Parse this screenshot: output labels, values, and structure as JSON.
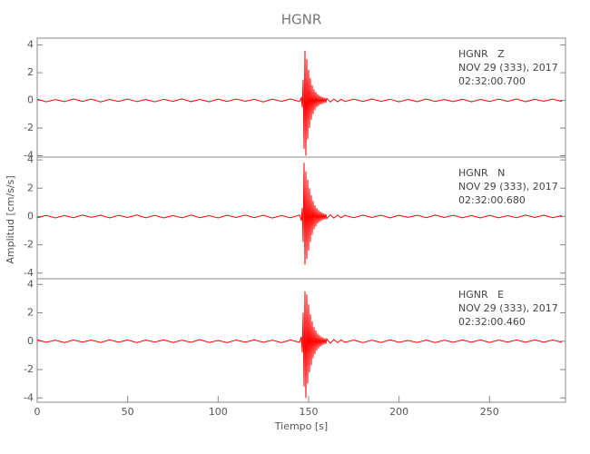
{
  "chart_data": [
    {
      "type": "line",
      "title": "HGNR",
      "ylabel": "Amplitud [cm/s/s]",
      "annotation": [
        "HGNR   Z",
        "NOV 29 (333), 2017",
        "02:32:00.700"
      ],
      "xlim": [
        0,
        292
      ],
      "ylim": [
        -4.1,
        4.5
      ],
      "yticks": [
        -4,
        -2,
        0,
        2,
        4
      ],
      "x": [
        0,
        5,
        10,
        15,
        20,
        25,
        30,
        35,
        40,
        45,
        50,
        55,
        60,
        65,
        70,
        75,
        80,
        85,
        90,
        95,
        100,
        105,
        110,
        115,
        120,
        125,
        130,
        135,
        140,
        145,
        146,
        146.5,
        147,
        147.5,
        148,
        148.5,
        149,
        149.5,
        150,
        150.5,
        151,
        151.5,
        152,
        152.5,
        153,
        153.5,
        154,
        154.5,
        155,
        155.5,
        156,
        156.5,
        157,
        157.5,
        158,
        158.5,
        159,
        159.5,
        160,
        162,
        164,
        166,
        168,
        170,
        175,
        180,
        185,
        190,
        195,
        200,
        205,
        210,
        215,
        220,
        225,
        230,
        235,
        240,
        245,
        250,
        255,
        260,
        265,
        270,
        275,
        280,
        285,
        290
      ],
      "series": [
        {
          "color": "#ff0000",
          "values": [
            0.08,
            -0.1,
            0.06,
            -0.09,
            0.1,
            -0.07,
            0.09,
            -0.11,
            0.07,
            -0.08,
            0.1,
            -0.09,
            0.06,
            -0.1,
            0.08,
            -0.07,
            0.11,
            -0.09,
            0.07,
            -0.1,
            0.09,
            -0.08,
            0.1,
            -0.06,
            0.08,
            -0.11,
            0.09,
            -0.07,
            0.1,
            -0.09,
            0.2,
            -0.5,
            1.5,
            -3.5,
            3.6,
            -4.0,
            3.0,
            -2.8,
            2.2,
            -2.0,
            1.6,
            -1.4,
            1.1,
            -1.0,
            0.8,
            -0.7,
            0.6,
            -0.5,
            0.45,
            -0.4,
            0.35,
            -0.3,
            0.28,
            -0.25,
            0.22,
            -0.2,
            0.18,
            -0.16,
            0.15,
            -0.12,
            0.1,
            -0.1,
            0.08,
            -0.08,
            0.09,
            -0.08,
            0.1,
            -0.07,
            0.08,
            -0.1,
            0.07,
            -0.09,
            0.1,
            -0.08,
            0.06,
            -0.09,
            0.08,
            -0.1,
            0.07,
            -0.08,
            0.09,
            -0.07,
            0.1,
            -0.09,
            0.08,
            -0.06,
            0.09,
            -0.08
          ]
        }
      ]
    },
    {
      "type": "line",
      "annotation": [
        "HGNR   N",
        "NOV 29 (333), 2017",
        "02:32:00.680"
      ],
      "xlim": [
        0,
        292
      ],
      "ylim": [
        -4.4,
        4.2
      ],
      "yticks": [
        -4,
        -2,
        0,
        2,
        4
      ],
      "x": [
        0,
        5,
        10,
        15,
        20,
        25,
        30,
        35,
        40,
        45,
        50,
        55,
        60,
        65,
        70,
        75,
        80,
        85,
        90,
        95,
        100,
        105,
        110,
        115,
        120,
        125,
        130,
        135,
        140,
        145,
        146,
        146.5,
        147,
        147.5,
        148,
        148.5,
        149,
        149.5,
        150,
        150.5,
        151,
        151.5,
        152,
        152.5,
        153,
        153.5,
        154,
        154.5,
        155,
        155.5,
        156,
        156.5,
        157,
        157.5,
        158,
        158.5,
        159,
        159.5,
        160,
        162,
        164,
        166,
        168,
        170,
        175,
        180,
        185,
        190,
        195,
        200,
        205,
        210,
        215,
        220,
        225,
        230,
        235,
        240,
        245,
        250,
        255,
        260,
        265,
        270,
        275,
        280,
        285,
        290
      ],
      "series": [
        {
          "color": "#ff0000",
          "values": [
            -0.09,
            0.08,
            -0.1,
            0.07,
            -0.08,
            0.1,
            -0.06,
            0.09,
            -0.1,
            0.08,
            -0.07,
            0.11,
            -0.09,
            0.08,
            -0.1,
            0.07,
            -0.09,
            0.1,
            -0.08,
            0.06,
            -0.1,
            0.09,
            -0.07,
            0.1,
            -0.08,
            0.09,
            -0.11,
            0.07,
            -0.09,
            0.1,
            -0.3,
            0.6,
            -1.8,
            3.8,
            -3.4,
            3.2,
            -3.0,
            2.6,
            -2.4,
            2.0,
            -1.8,
            1.5,
            -1.3,
            1.1,
            -0.9,
            0.8,
            -0.7,
            0.6,
            -0.5,
            0.45,
            -0.4,
            0.35,
            -0.3,
            0.27,
            -0.24,
            0.21,
            -0.19,
            0.17,
            -0.15,
            0.13,
            -0.11,
            0.1,
            -0.09,
            0.08,
            -0.08,
            0.1,
            -0.07,
            0.09,
            -0.1,
            0.08,
            -0.06,
            0.09,
            -0.08,
            0.1,
            -0.07,
            0.08,
            -0.09,
            0.07,
            -0.1,
            0.08,
            -0.09,
            0.06,
            -0.08,
            0.1,
            -0.07,
            0.09,
            -0.08,
            0.07
          ]
        }
      ]
    },
    {
      "type": "line",
      "xlabel": "Tiempo [s]",
      "annotation": [
        "HGNR   E",
        "NOV 29 (333), 2017",
        "02:32:00.460"
      ],
      "xlim": [
        0,
        292
      ],
      "ylim": [
        -4.3,
        4.4
      ],
      "yticks": [
        -4,
        -2,
        0,
        2,
        4
      ],
      "xticks": [
        0,
        50,
        100,
        150,
        200,
        250
      ],
      "x": [
        0,
        5,
        10,
        15,
        20,
        25,
        30,
        35,
        40,
        45,
        50,
        55,
        60,
        65,
        70,
        75,
        80,
        85,
        90,
        95,
        100,
        105,
        110,
        115,
        120,
        125,
        130,
        135,
        140,
        145,
        146,
        146.5,
        147,
        147.5,
        148,
        148.5,
        149,
        149.5,
        150,
        150.5,
        151,
        151.5,
        152,
        152.5,
        153,
        153.5,
        154,
        154.5,
        155,
        155.5,
        156,
        156.5,
        157,
        157.5,
        158,
        158.5,
        159,
        159.5,
        160,
        162,
        164,
        166,
        168,
        170,
        175,
        180,
        185,
        190,
        195,
        200,
        205,
        210,
        215,
        220,
        225,
        230,
        235,
        240,
        245,
        250,
        255,
        260,
        265,
        270,
        275,
        280,
        285,
        290
      ],
      "series": [
        {
          "color": "#ff0000",
          "values": [
            0.1,
            -0.08,
            0.07,
            -0.1,
            0.09,
            -0.06,
            0.08,
            -0.09,
            0.1,
            -0.07,
            0.09,
            -0.1,
            0.08,
            -0.06,
            0.1,
            -0.09,
            0.07,
            -0.08,
            0.11,
            -0.09,
            0.06,
            -0.1,
            0.08,
            -0.07,
            0.1,
            -0.08,
            0.07,
            -0.1,
            0.09,
            -0.08,
            0.3,
            -0.8,
            2.0,
            -3.2,
            3.5,
            -4.0,
            3.3,
            -3.0,
            2.6,
            -2.2,
            1.9,
            -1.7,
            1.4,
            -1.2,
            1.0,
            -0.9,
            0.75,
            -0.65,
            0.55,
            -0.5,
            0.42,
            -0.38,
            0.32,
            -0.28,
            0.25,
            -0.22,
            0.2,
            -0.18,
            0.16,
            -0.14,
            0.12,
            -0.1,
            0.09,
            -0.08,
            0.08,
            -0.1,
            0.07,
            -0.09,
            0.1,
            -0.08,
            0.06,
            -0.09,
            0.08,
            -0.1,
            0.07,
            -0.08,
            0.09,
            -0.07,
            0.1,
            -0.09,
            0.08,
            -0.06,
            0.09,
            -0.08,
            0.1,
            -0.07,
            0.09,
            -0.08
          ]
        }
      ]
    }
  ]
}
